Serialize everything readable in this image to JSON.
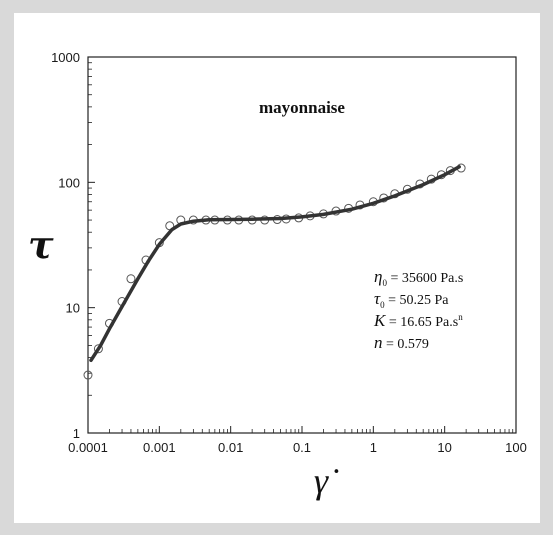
{
  "chart_data": {
    "type": "scatter",
    "title": "mayonnaise",
    "xlabel": "γ̇",
    "ylabel": "τ",
    "xscale": "log",
    "yscale": "log",
    "xlim": [
      0.0001,
      100
    ],
    "ylim": [
      1,
      1000
    ],
    "x_tick_labels": [
      "0.0001",
      "0.001",
      "0.01",
      "0.1",
      "1",
      "10",
      "100"
    ],
    "y_tick_labels": [
      "1",
      "10",
      "100",
      "1000"
    ],
    "grid": false,
    "series": [
      {
        "kind": "markers",
        "marker": "open-circle",
        "points": [
          [
            0.0001,
            2.9
          ],
          [
            0.00014,
            4.7
          ],
          [
            0.0002,
            7.5
          ],
          [
            0.0003,
            11.2
          ],
          [
            0.0004,
            17
          ],
          [
            0.00065,
            24
          ],
          [
            0.001,
            33
          ],
          [
            0.0014,
            45
          ],
          [
            0.002,
            50
          ],
          [
            0.003,
            50
          ],
          [
            0.0045,
            50
          ],
          [
            0.006,
            50
          ],
          [
            0.009,
            50
          ],
          [
            0.013,
            50
          ],
          [
            0.02,
            50
          ],
          [
            0.03,
            50
          ],
          [
            0.045,
            50.5
          ],
          [
            0.06,
            51
          ],
          [
            0.09,
            52
          ],
          [
            0.13,
            54
          ],
          [
            0.2,
            56
          ],
          [
            0.3,
            59
          ],
          [
            0.45,
            62
          ],
          [
            0.65,
            66
          ],
          [
            1.0,
            70
          ],
          [
            1.4,
            75
          ],
          [
            2.0,
            81
          ],
          [
            3.0,
            88
          ],
          [
            4.5,
            97
          ],
          [
            6.5,
            106
          ],
          [
            9.0,
            115
          ],
          [
            12.0,
            124
          ],
          [
            17.0,
            130
          ]
        ]
      },
      {
        "kind": "fit-line",
        "color": "#333333",
        "points": [
          [
            0.00011,
            3.8
          ],
          [
            0.00015,
            5.0
          ],
          [
            0.0002,
            6.8
          ],
          [
            0.0003,
            10.2
          ],
          [
            0.0005,
            17
          ],
          [
            0.0007,
            23.5
          ],
          [
            0.001,
            32
          ],
          [
            0.0015,
            42
          ],
          [
            0.002,
            46.5
          ],
          [
            0.003,
            49
          ],
          [
            0.005,
            50.2
          ],
          [
            0.01,
            50.5
          ],
          [
            0.02,
            50.8
          ],
          [
            0.05,
            51.5
          ],
          [
            0.1,
            53
          ],
          [
            0.2,
            55.5
          ],
          [
            0.5,
            61
          ],
          [
            1.0,
            68
          ],
          [
            2.0,
            78
          ],
          [
            5.0,
            96
          ],
          [
            10.0,
            115
          ],
          [
            16.0,
            133
          ]
        ]
      }
    ],
    "annotations": [
      {
        "symbol": "η",
        "sub": "0",
        "text": " = 35600 Pa.s"
      },
      {
        "symbol": "τ",
        "sub": "0",
        "text": " = 50.25 Pa"
      },
      {
        "symbol": "K",
        "sub": "",
        "text": " = 16.65 Pa.s",
        "sup": "n"
      },
      {
        "symbol": "n",
        "sub": "",
        "text": " = 0.579"
      }
    ]
  }
}
